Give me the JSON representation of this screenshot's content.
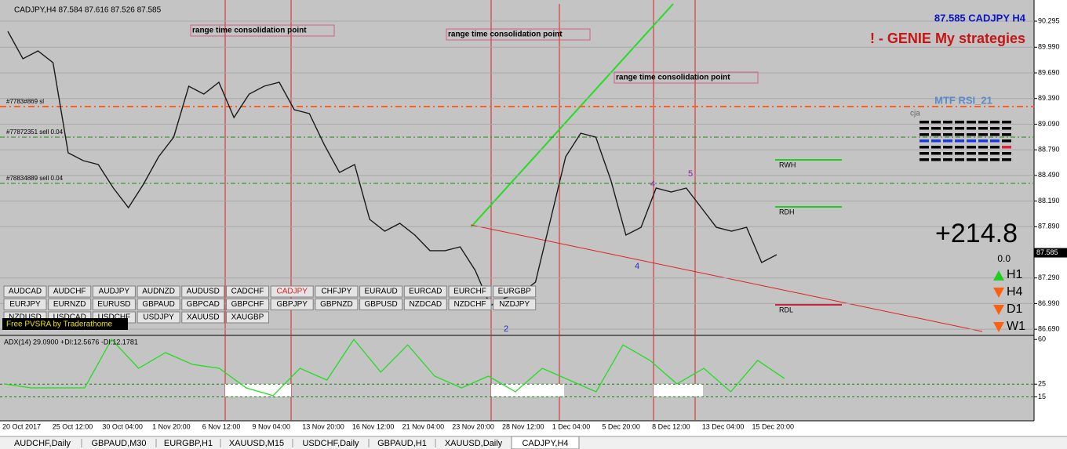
{
  "header": {
    "symbol_info": "CADJPY,H4 87.584 87.616 87.526 87.585",
    "title_right": "87.585 CADJPY H4",
    "strategy": "! - GENIE My strategies"
  },
  "price_panel": {
    "ylim": [
      86.618,
      90.543
    ],
    "yticks": [
      90.295,
      {
        "value": 89.99,
        "label": "89.990"
      },
      {
        "value": 89.69,
        "label": "89.690"
      },
      {
        "value": 89.39,
        "label": "89.390"
      },
      {
        "value": 89.09,
        "label": "89.090"
      },
      {
        "value": 88.79,
        "label": "88.790"
      },
      {
        "value": 88.49,
        "label": "88.490"
      },
      {
        "value": 88.19,
        "label": "88.190"
      },
      {
        "value": 87.89,
        "label": "87.890"
      },
      {
        "value": 87.29,
        "label": "87.290"
      },
      {
        "value": 86.99,
        "label": "86.990"
      },
      {
        "value": 86.69,
        "label": "86.690"
      }
    ],
    "current_price": 87.585,
    "closes": [
      90.176,
      89.855,
      89.947,
      89.809,
      88.755,
      88.663,
      88.617,
      88.342,
      88.113,
      88.388,
      88.709,
      88.938,
      89.534,
      89.442,
      89.58,
      89.167,
      89.442,
      89.534,
      89.58,
      89.259,
      89.213,
      88.846,
      88.525,
      88.617,
      87.975,
      87.838,
      87.929,
      87.792,
      87.609,
      87.609,
      87.654,
      87.379,
      86.966,
      87.058,
      87.104,
      87.241,
      87.975,
      88.709,
      88.984,
      88.938,
      88.434,
      87.792,
      87.883,
      88.342,
      88.296,
      88.342,
      88.113,
      87.883,
      87.838,
      87.883,
      87.471,
      87.563
    ],
    "order_levels": [
      {
        "label": "#7783#869 sl",
        "price": 89.296,
        "color": "#ff6020"
      },
      {
        "label": "#77872351 sell 0.04",
        "price": 88.938,
        "color": "#1a8a1a"
      },
      {
        "label": "#78834889 sell 0.04",
        "price": 88.397,
        "color": "#1a8a1a"
      }
    ],
    "range_levels": [
      {
        "label": "RWH",
        "price": 88.672,
        "color": "#22cc22"
      },
      {
        "label": "RDH",
        "price": 88.122,
        "color": "#22cc22"
      },
      {
        "label": "RDL",
        "price": 86.976,
        "color": "#cc2244"
      }
    ],
    "annotations": [
      "range time consolidation point",
      "range time consolidation point",
      "range time consolidation point"
    ],
    "wave_labels": [
      "2",
      "4",
      "4",
      "5"
    ]
  },
  "adx_panel": {
    "title": "ADX(14) 29.0900 +DI:12.5676 -DI:12.1781",
    "ylim": [
      -3.7,
      63.2
    ],
    "yticks": [
      60,
      25,
      15
    ],
    "values": [
      25.2,
      22.1,
      22.1,
      22.1,
      60.1,
      37.4,
      49.7,
      40.5,
      37.4,
      22.1,
      16.0,
      37.4,
      28.2,
      60.1,
      34.4,
      55.8,
      31.3,
      22.1,
      31.3,
      19.0,
      37.4,
      28.2,
      19.0,
      55.8,
      43.6,
      25.2,
      37.4,
      19.0,
      43.6,
      29.4
    ]
  },
  "time_labels": [
    "20 Oct 2017",
    "25 Oct 12:00",
    "30 Oct 04:00",
    "1 Nov 20:00",
    "6 Nov 12:00",
    "9 Nov 04:00",
    "13 Nov 20:00",
    "16 Nov 12:00",
    "21 Nov 04:00",
    "23 Nov 20:00",
    "28 Nov 12:00",
    "1 Dec 04:00",
    "5 Dec 20:00",
    "8 Dec 12:00",
    "13 Dec 04:00",
    "15 Dec 20:00"
  ],
  "symbols": [
    [
      "AUDCAD",
      "AUDCHF",
      "AUDJPY",
      "AUDNZD",
      "AUDUSD",
      "CADCHF",
      "CADJPY",
      "CHFJPY",
      "EURAUD",
      "EURCAD",
      "EURCHF",
      "EURGBP"
    ],
    [
      "EURJPY",
      "EURNZD",
      "EURUSD",
      "GBPAUD",
      "GBPCAD",
      "GBPCHF",
      "GBPJPY",
      "GBPNZD",
      "GBPUSD",
      "NZDCAD",
      "NZDCHF",
      "NZDJPY"
    ],
    [
      "NZDUSD",
      "USDCAD",
      "USDCHF",
      "USDJPY",
      "XAUUSD",
      "XAUGBP"
    ]
  ],
  "pvsra": "Free PVSRA by Traderathome",
  "mtf_rsi": {
    "title": "MTF RSI_21",
    "author": "cja"
  },
  "signal": {
    "profit": "+214.8",
    "sub": "0.0",
    "timeframes": [
      "H1",
      "H4",
      "D1",
      "W1"
    ]
  },
  "tabs": [
    "AUDCHF,Daily",
    "GBPAUD,M30",
    "EURGBP,H1",
    "XAUUSD,M15",
    "USDCHF,Daily",
    "GBPAUD,H1",
    "XAUUSD,Daily",
    "CADJPY,H4"
  ]
}
